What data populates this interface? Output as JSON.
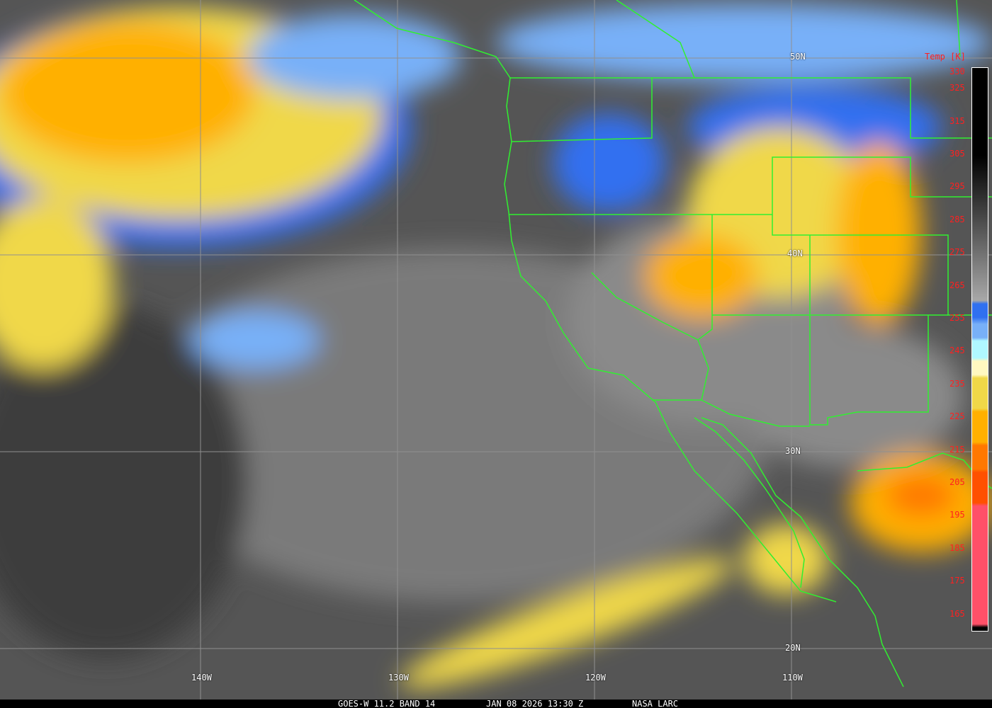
{
  "caption": {
    "satellite": "GOES-W 11.2 BAND 14",
    "datetime": "JAN 08 2026 13:30 Z",
    "source": "NASA LARC"
  },
  "colorbar": {
    "title": "Temp [K]",
    "labels": [
      "330",
      "325",
      "315",
      "305",
      "295",
      "285",
      "275",
      "265",
      "255",
      "245",
      "235",
      "225",
      "215",
      "205",
      "195",
      "185",
      "175",
      "165"
    ],
    "stops": [
      {
        "k": 330,
        "c": "#000000"
      },
      {
        "k": 305,
        "c": "#000000"
      },
      {
        "k": 262,
        "c": "#a8a8a8"
      },
      {
        "k": 261,
        "c": "#3070f0"
      },
      {
        "k": 257,
        "c": "#3070f0"
      },
      {
        "k": 255,
        "c": "#78b0f8"
      },
      {
        "k": 251,
        "c": "#78b0f8"
      },
      {
        "k": 250,
        "c": "#b0f8ff"
      },
      {
        "k": 245,
        "c": "#b0f8ff"
      },
      {
        "k": 244,
        "c": "#fff8c0"
      },
      {
        "k": 240,
        "c": "#fff8c0"
      },
      {
        "k": 239,
        "c": "#f0d848"
      },
      {
        "k": 230,
        "c": "#f0d848"
      },
      {
        "k": 229,
        "c": "#ffb000"
      },
      {
        "k": 220,
        "c": "#ffb000"
      },
      {
        "k": 219,
        "c": "#ff7800"
      },
      {
        "k": 212,
        "c": "#ff7800"
      },
      {
        "k": 211,
        "c": "#ff5000"
      },
      {
        "k": 202,
        "c": "#ff5000"
      },
      {
        "k": 201,
        "c": "#ff5068"
      },
      {
        "k": 166,
        "c": "#ff5068"
      },
      {
        "k": 165,
        "c": "#000000"
      }
    ]
  },
  "lat_labels": [
    "50N",
    "40N",
    "30N",
    "20N"
  ],
  "lon_labels": [
    "140W",
    "130W",
    "120W",
    "110W"
  ],
  "colors": {
    "border": "#30f030",
    "grid": "#909090"
  }
}
